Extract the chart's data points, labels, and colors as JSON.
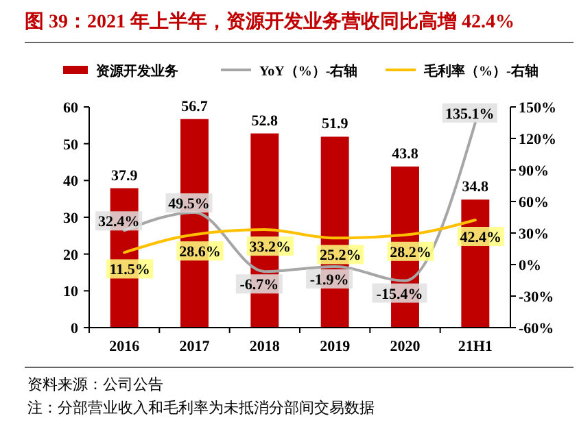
{
  "chart_data": {
    "type": "bar",
    "title": "图 39：2021 年上半年，资源开发业务营收同比高增 42.4%",
    "categories": [
      "2016",
      "2017",
      "2018",
      "2019",
      "2020",
      "21H1"
    ],
    "series": [
      {
        "name": "资源开发业务",
        "color": "#c00000",
        "values": [
          37.9,
          56.7,
          52.8,
          51.9,
          43.8,
          34.8
        ],
        "value_labels": [
          "37.9",
          "56.7",
          "52.8",
          "51.9",
          "43.8",
          "34.8"
        ]
      },
      {
        "name": "YoY（%）-右轴",
        "type": "line",
        "axis": "y2",
        "color": "#a6a6a6",
        "values": [
          32.4,
          49.5,
          -6.7,
          -1.9,
          -15.4,
          135.1
        ],
        "value_labels": [
          "32.4%",
          "49.5%",
          "-6.7%",
          "-1.9%",
          "-15.4%",
          "135.1%"
        ]
      },
      {
        "name": "毛利率（%）-右轴",
        "type": "line",
        "axis": "y2",
        "color": "#ffc000",
        "values": [
          11.5,
          28.6,
          33.2,
          25.2,
          28.2,
          42.4
        ],
        "value_labels": [
          "11.5%",
          "28.6%",
          "33.2%",
          "25.2%",
          "28.2%",
          "42.4%"
        ]
      }
    ],
    "ylim": [
      0,
      60
    ],
    "yticks": [
      0,
      10,
      20,
      30,
      40,
      50,
      60
    ],
    "y2lim": [
      -60,
      150
    ],
    "y2ticks": [
      {
        "value": -60,
        "label": "-60%"
      },
      {
        "value": -30,
        "label": "-30%"
      },
      {
        "value": 0,
        "label": "0%"
      },
      {
        "value": 30,
        "label": "30%"
      },
      {
        "value": 60,
        "label": "60%"
      },
      {
        "value": 90,
        "label": "90%"
      },
      {
        "value": 120,
        "label": "120%"
      },
      {
        "value": 150,
        "label": "150%"
      }
    ],
    "legend": "top",
    "grid": false,
    "annotations": [
      "资料来源：公司公告",
      "注：分部营业收入和毛利率为未抵消分部间交易数据"
    ]
  }
}
